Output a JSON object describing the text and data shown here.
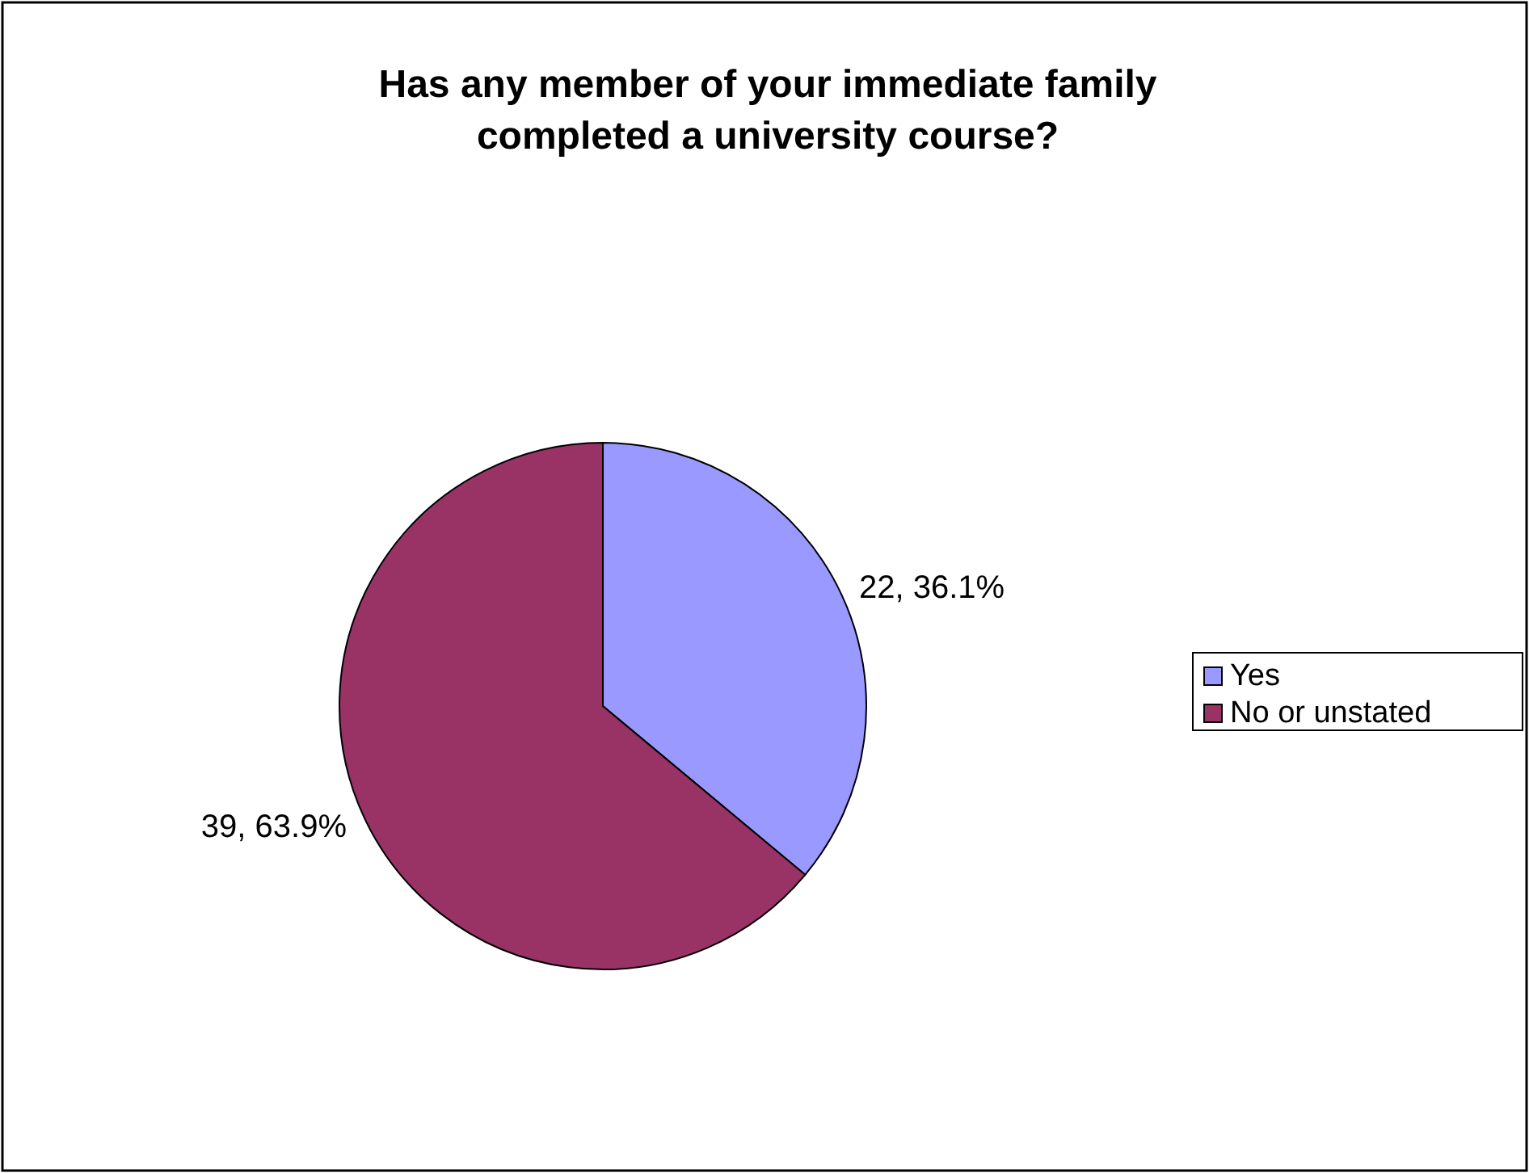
{
  "chart_data": {
    "type": "pie",
    "title": "Has any member of your immediate family completed a university course?",
    "categories": [
      "Yes",
      "No or unstated"
    ],
    "values": [
      22,
      39
    ],
    "colors": [
      "#9999ff",
      "#993366"
    ],
    "value_labels": [
      "22, 36.1%",
      "39, 63.9%"
    ],
    "legend": "right"
  }
}
